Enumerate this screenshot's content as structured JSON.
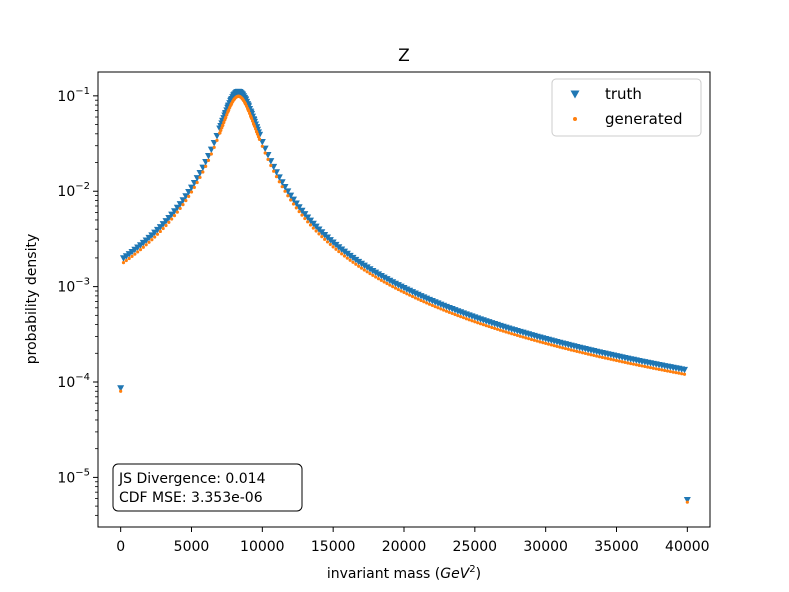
{
  "chart_data": {
    "type": "scatter",
    "title": "Z",
    "xlabel": "invariant mass (",
    "xlabel_math": "GeV",
    "xlabel_exp": "2",
    "xlabel_close": ")",
    "ylabel": "probability density",
    "xlim": [
      -1600,
      41600
    ],
    "ylim_log10": [
      -5.52,
      -0.75
    ],
    "y_scale": "log",
    "grid": false,
    "legend_position": "top-right",
    "x_ticks": [
      {
        "value": 0,
        "label": "0"
      },
      {
        "value": 5000,
        "label": "5000"
      },
      {
        "value": 10000,
        "label": "10000"
      },
      {
        "value": 15000,
        "label": "15000"
      },
      {
        "value": 20000,
        "label": "20000"
      },
      {
        "value": 25000,
        "label": "25000"
      },
      {
        "value": 30000,
        "label": "30000"
      },
      {
        "value": 35000,
        "label": "35000"
      },
      {
        "value": 40000,
        "label": "40000"
      }
    ],
    "y_ticks": [
      {
        "exp": -1,
        "base": "10",
        "power": "−1"
      },
      {
        "exp": -2,
        "base": "10",
        "power": "−2"
      },
      {
        "exp": -3,
        "base": "10",
        "power": "−3"
      },
      {
        "exp": -4,
        "base": "10",
        "power": "−4"
      },
      {
        "exp": -5,
        "base": "10",
        "power": "−5"
      }
    ],
    "series": [
      {
        "name": "truth",
        "color": "#1f77b4",
        "marker": "triangle-down",
        "peak_x": 8315,
        "peak_y": 0.11,
        "half_width": 1100,
        "scale_below": 0.0084,
        "scale_above": 0.00875
      },
      {
        "name": "generated",
        "color": "#ff7f0e",
        "marker": "dot",
        "peak_x": 8315,
        "peak_y": 0.099,
        "half_width": 1100,
        "scale_below": 0.0078,
        "scale_above": 0.0082
      }
    ],
    "annotations": [
      {
        "label": "JS Divergence:",
        "value": "0.014"
      },
      {
        "label": "CDF MSE:",
        "value": "3.353e-06"
      }
    ]
  },
  "colors": {
    "truth": "#1f77b4",
    "generated": "#ff7f0e"
  }
}
